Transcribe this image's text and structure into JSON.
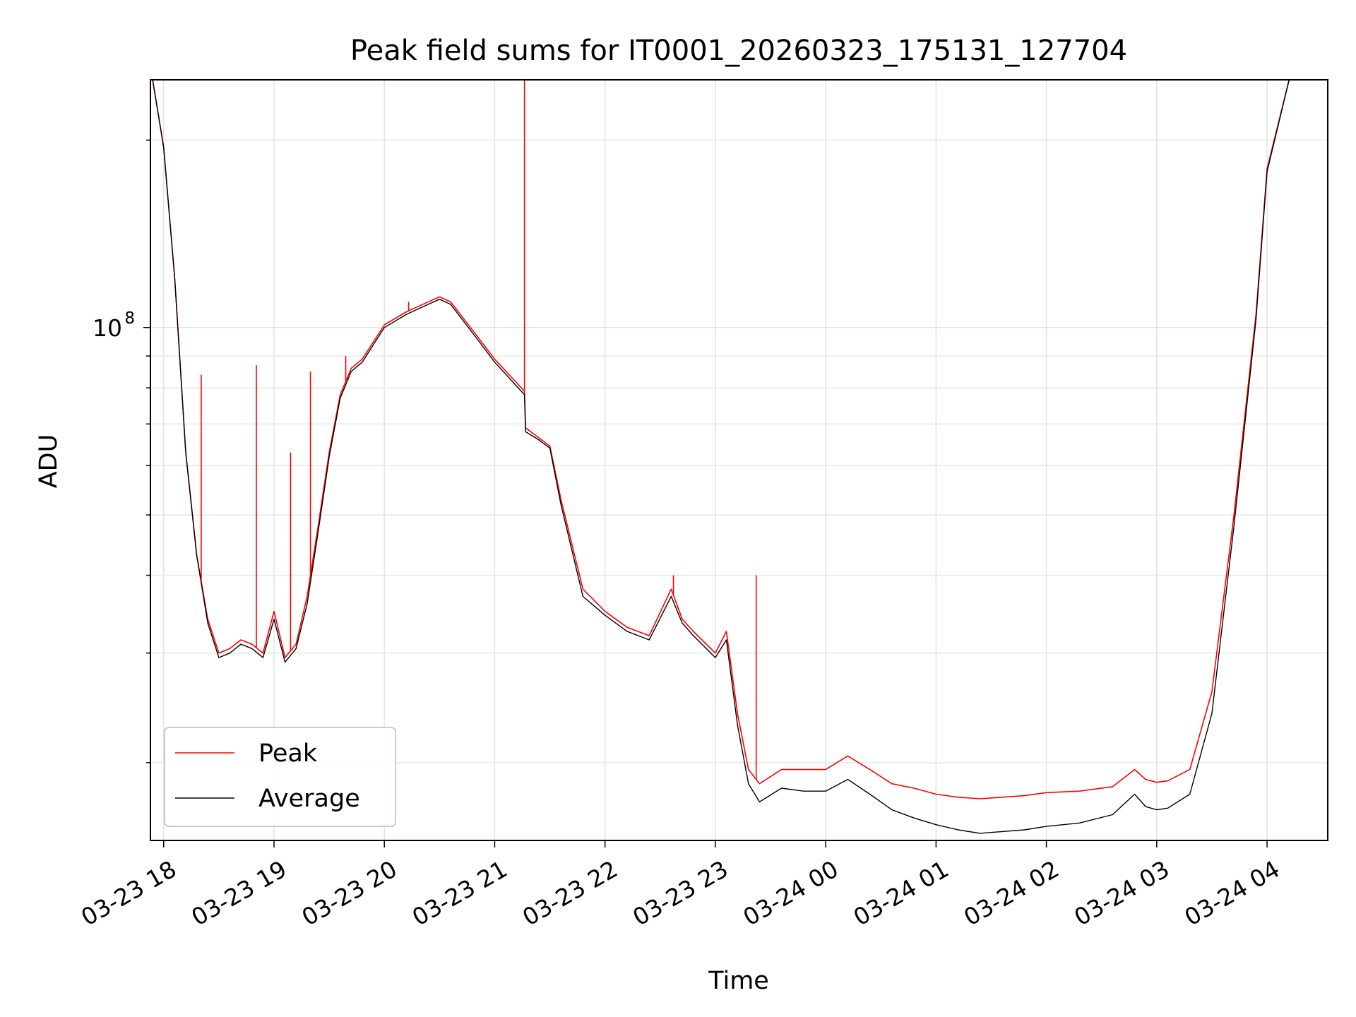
{
  "chart_data": {
    "type": "line",
    "title": "Peak field sums for IT0001_20260323_175131_127704",
    "xlabel": "Time",
    "ylabel": "ADU",
    "yscale": "log",
    "ylim": [
      15000000,
      250000000
    ],
    "xlim_hours": [
      17.88,
      28.55
    ],
    "grid": true,
    "legend_position": "lower-left",
    "x_tick_hours": [
      18,
      19,
      20,
      21,
      22,
      23,
      24,
      25,
      26,
      27,
      28
    ],
    "x_tick_labels": [
      "03-23 18",
      "03-23 19",
      "03-23 20",
      "03-23 21",
      "03-23 22",
      "03-23 23",
      "03-24 00",
      "03-24 01",
      "03-24 02",
      "03-24 03",
      "03-24 04"
    ],
    "y_major_ticks": [
      {
        "value": 100000000,
        "base": "10",
        "exp": "8"
      }
    ],
    "y_minor_ticks": [
      20000000,
      30000000,
      40000000,
      50000000,
      60000000,
      70000000,
      80000000,
      90000000,
      200000000
    ],
    "series": [
      {
        "name": "Peak",
        "color": "#ff0000",
        "x_hours": [
          17.9,
          18.0,
          18.1,
          18.2,
          18.3,
          18.4,
          18.5,
          18.6,
          18.7,
          18.8,
          18.9,
          19.0,
          19.1,
          19.2,
          19.3,
          19.4,
          19.5,
          19.6,
          19.7,
          19.8,
          20.0,
          20.2,
          20.4,
          20.5,
          20.6,
          20.8,
          21.0,
          21.27,
          21.28,
          21.4,
          21.5,
          21.6,
          21.8,
          22.0,
          22.2,
          22.4,
          22.6,
          22.7,
          22.8,
          23.0,
          23.1,
          23.2,
          23.3,
          23.4,
          23.6,
          23.8,
          24.0,
          24.2,
          24.4,
          24.6,
          24.8,
          25.0,
          25.2,
          25.4,
          25.6,
          25.8,
          26.0,
          26.3,
          26.6,
          26.8,
          26.9,
          27.0,
          27.1,
          27.3,
          27.5,
          27.7,
          27.9,
          28.0,
          28.2,
          28.35,
          28.45
        ],
        "values": [
          250000000,
          195000000,
          120000000,
          63000000,
          43000000,
          34000000,
          30000000,
          30500000,
          31500000,
          31000000,
          30000000,
          35000000,
          29500000,
          31000000,
          37000000,
          48000000,
          63000000,
          78000000,
          86000000,
          89000000,
          101000000,
          106000000,
          110000000,
          112000000,
          110000000,
          99000000,
          89000000,
          79000000,
          69000000,
          66500000,
          64500000,
          53000000,
          38000000,
          35000000,
          33000000,
          32000000,
          38000000,
          34000000,
          32500000,
          30000000,
          32500000,
          24000000,
          19500000,
          18500000,
          19500000,
          19500000,
          19500000,
          20500000,
          19500000,
          18500000,
          18200000,
          17800000,
          17600000,
          17500000,
          17600000,
          17700000,
          17900000,
          18000000,
          18300000,
          19500000,
          18800000,
          18600000,
          18700000,
          19500000,
          26000000,
          50000000,
          105000000,
          180000000,
          250000000,
          250000000,
          250000000
        ]
      },
      {
        "name": "Average",
        "color": "#000000",
        "x_hours": [
          17.9,
          18.0,
          18.1,
          18.2,
          18.3,
          18.4,
          18.5,
          18.6,
          18.7,
          18.8,
          18.9,
          19.0,
          19.1,
          19.2,
          19.3,
          19.4,
          19.5,
          19.6,
          19.7,
          19.8,
          20.0,
          20.2,
          20.4,
          20.5,
          20.6,
          20.8,
          21.0,
          21.27,
          21.28,
          21.4,
          21.5,
          21.6,
          21.8,
          22.0,
          22.2,
          22.4,
          22.6,
          22.7,
          22.8,
          23.0,
          23.1,
          23.2,
          23.3,
          23.4,
          23.6,
          23.8,
          24.0,
          24.2,
          24.4,
          24.6,
          24.8,
          25.0,
          25.2,
          25.4,
          25.6,
          25.8,
          26.0,
          26.3,
          26.6,
          26.8,
          26.9,
          27.0,
          27.1,
          27.3,
          27.5,
          27.7,
          27.9,
          28.0,
          28.2,
          28.35,
          28.45
        ],
        "values": [
          250000000,
          195000000,
          120000000,
          63000000,
          43000000,
          33500000,
          29500000,
          30000000,
          31000000,
          30500000,
          29500000,
          34000000,
          29000000,
          30500000,
          36000000,
          47000000,
          62000000,
          77000000,
          85000000,
          88000000,
          100000000,
          105000000,
          109000000,
          111000000,
          109000000,
          98000000,
          88000000,
          78000000,
          68000000,
          66000000,
          64000000,
          52000000,
          37000000,
          34500000,
          32500000,
          31500000,
          37000000,
          33500000,
          32000000,
          29500000,
          31500000,
          23000000,
          18500000,
          17300000,
          18200000,
          18000000,
          18000000,
          18800000,
          17800000,
          16800000,
          16300000,
          15900000,
          15600000,
          15400000,
          15500000,
          15600000,
          15800000,
          16000000,
          16500000,
          17800000,
          17000000,
          16800000,
          16900000,
          17800000,
          24000000,
          48000000,
          103000000,
          178000000,
          250000000,
          250000000,
          250000000
        ]
      }
    ],
    "spikes": [
      {
        "x_hour": 18.34,
        "value": 84000000
      },
      {
        "x_hour": 18.84,
        "value": 87000000
      },
      {
        "x_hour": 19.15,
        "value": 63000000
      },
      {
        "x_hour": 19.33,
        "value": 85000000
      },
      {
        "x_hour": 19.65,
        "value": 90000000
      },
      {
        "x_hour": 20.22,
        "value": 110000000
      },
      {
        "x_hour": 21.27,
        "value": 250000000
      },
      {
        "x_hour": 22.62,
        "value": 40000000
      },
      {
        "x_hour": 23.37,
        "value": 40000000
      }
    ]
  },
  "legend": {
    "peak_label": "Peak",
    "average_label": "Average"
  }
}
